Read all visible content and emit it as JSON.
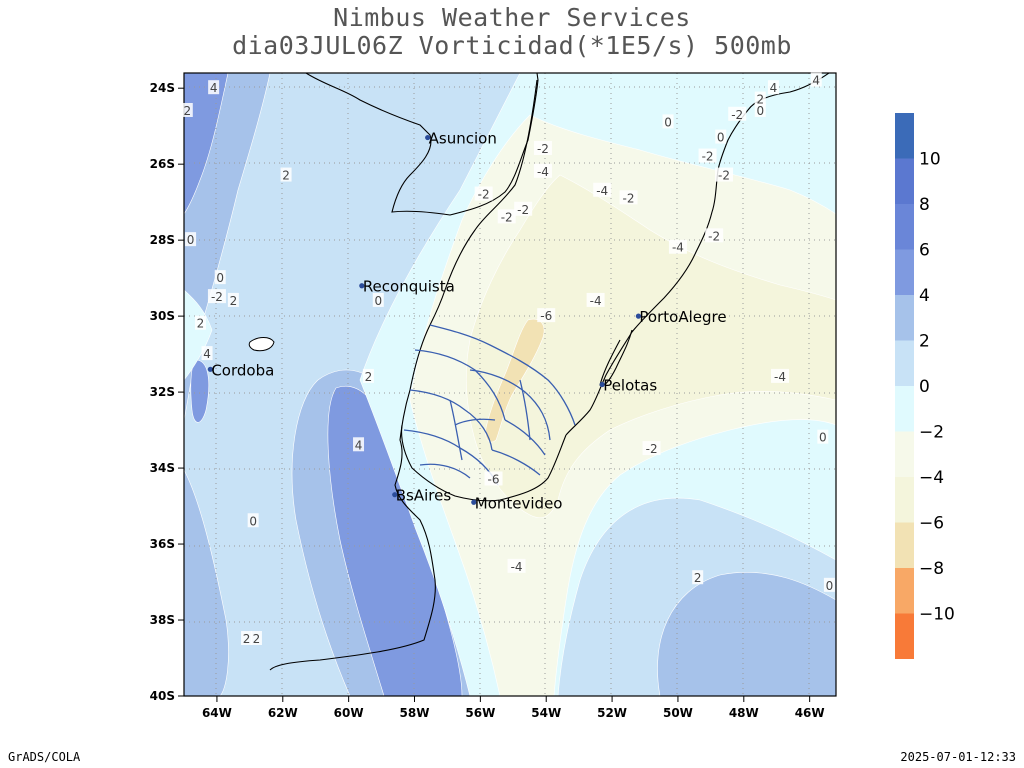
{
  "title": {
    "line1": "Nimbus Weather Services",
    "line2": "dia03JUL06Z Vorticidad(*1E5/s) 500mb"
  },
  "map": {
    "lon_range": [
      -65,
      -45.2
    ],
    "lat_range": [
      -40,
      -23.6
    ],
    "lon_ticks": [
      {
        "lon": -64,
        "label": "64W"
      },
      {
        "lon": -62,
        "label": "62W"
      },
      {
        "lon": -60,
        "label": "60W"
      },
      {
        "lon": -58,
        "label": "58W"
      },
      {
        "lon": -56,
        "label": "56W"
      },
      {
        "lon": -54,
        "label": "54W"
      },
      {
        "lon": -52,
        "label": "52W"
      },
      {
        "lon": -50,
        "label": "50W"
      },
      {
        "lon": -48,
        "label": "48W"
      },
      {
        "lon": -46,
        "label": "46W"
      }
    ],
    "lat_ticks": [
      {
        "lat": -24,
        "label": "24S"
      },
      {
        "lat": -26,
        "label": "26S"
      },
      {
        "lat": -28,
        "label": "28S"
      },
      {
        "lat": -30,
        "label": "30S"
      },
      {
        "lat": -32,
        "label": "32S"
      },
      {
        "lat": -34,
        "label": "34S"
      },
      {
        "lat": -36,
        "label": "36S"
      },
      {
        "lat": -38,
        "label": "38S"
      },
      {
        "lat": -40,
        "label": "40S"
      }
    ],
    "cities": [
      {
        "name": "Asuncion",
        "lon": -57.6,
        "lat": -25.3
      },
      {
        "name": "Reconquista",
        "lon": -59.6,
        "lat": -29.2
      },
      {
        "name": "Cordoba",
        "lon": -64.2,
        "lat": -31.4
      },
      {
        "name": "BsAires",
        "lon": -58.6,
        "lat": -34.7
      },
      {
        "name": "Montevideo",
        "lon": -56.2,
        "lat": -34.9
      },
      {
        "name": "PortoAlegre",
        "lon": -51.2,
        "lat": -30.0
      },
      {
        "name": "Pelotas",
        "lon": -52.3,
        "lat": -31.8
      }
    ],
    "contour_labels": [
      {
        "text": "4",
        "lon": -64.1,
        "lat": -24.0
      },
      {
        "text": "2",
        "lon": -64.9,
        "lat": -24.6
      },
      {
        "text": "-2",
        "lon": -54.1,
        "lat": -25.6
      },
      {
        "text": "0",
        "lon": -50.3,
        "lat": -24.9
      },
      {
        "text": "-2",
        "lon": -48.2,
        "lat": -24.7
      },
      {
        "text": "0",
        "lon": -47.5,
        "lat": -24.6
      },
      {
        "text": "2",
        "lon": -47.5,
        "lat": -24.3
      },
      {
        "text": "4",
        "lon": -47.1,
        "lat": -24.0
      },
      {
        "text": "4",
        "lon": -45.8,
        "lat": -23.8
      },
      {
        "text": "0",
        "lon": -48.7,
        "lat": -25.3
      },
      {
        "text": "-2",
        "lon": -49.1,
        "lat": -25.8
      },
      {
        "text": "-2",
        "lon": -48.6,
        "lat": -26.3
      },
      {
        "text": "2",
        "lon": -61.9,
        "lat": -26.3
      },
      {
        "text": "-4",
        "lon": -54.1,
        "lat": -26.2
      },
      {
        "text": "-2",
        "lon": -55.9,
        "lat": -26.8
      },
      {
        "text": "-4",
        "lon": -52.3,
        "lat": -26.7
      },
      {
        "text": "-2",
        "lon": -51.5,
        "lat": -26.9
      },
      {
        "text": "-2",
        "lon": -54.7,
        "lat": -27.2
      },
      {
        "text": "-2",
        "lon": -55.2,
        "lat": -27.4
      },
      {
        "text": "-2",
        "lon": -48.9,
        "lat": -27.9
      },
      {
        "text": "-4",
        "lon": -50.0,
        "lat": -28.2
      },
      {
        "text": "0",
        "lon": -63.9,
        "lat": -29.0
      },
      {
        "text": "-2",
        "lon": -64.0,
        "lat": -29.5
      },
      {
        "text": "2",
        "lon": -63.5,
        "lat": -29.6
      },
      {
        "text": "0",
        "lon": -59.1,
        "lat": -29.6
      },
      {
        "text": "-4",
        "lon": -52.5,
        "lat": -29.6
      },
      {
        "text": "-6",
        "lon": -54.0,
        "lat": -30.0
      },
      {
        "text": "4",
        "lon": -64.3,
        "lat": -31.0
      },
      {
        "text": "2",
        "lon": -59.4,
        "lat": -31.6
      },
      {
        "text": "-4",
        "lon": -46.9,
        "lat": -31.6
      },
      {
        "text": "4",
        "lon": -59.7,
        "lat": -33.4
      },
      {
        "text": "-2",
        "lon": -50.8,
        "lat": -33.5
      },
      {
        "text": "0",
        "lon": -45.6,
        "lat": -33.2
      },
      {
        "text": "-6",
        "lon": -55.6,
        "lat": -34.3
      },
      {
        "text": "0",
        "lon": -62.9,
        "lat": -35.4
      },
      {
        "text": "-4",
        "lon": -54.9,
        "lat": -36.6
      },
      {
        "text": "2",
        "lon": -49.4,
        "lat": -36.9
      },
      {
        "text": "0",
        "lon": -45.4,
        "lat": -37.1
      },
      {
        "text": "2",
        "lon": -62.8,
        "lat": -38.5
      },
      {
        "text": "2",
        "lon": -63.1,
        "lat": -38.5
      },
      {
        "text": "2",
        "lon": -64.5,
        "lat": -30.2
      },
      {
        "text": "0",
        "lon": -64.8,
        "lat": -28.0
      }
    ]
  },
  "legend": {
    "colors": [
      "#3b6bb8",
      "#5b78d0",
      "#6a86d8",
      "#7f9ae0",
      "#a6c2ea",
      "#c8e2f6",
      "#e0fafe",
      "#f6f9ea",
      "#f4f5dc",
      "#f2e2b4",
      "#f8a866",
      "#f87a38"
    ],
    "labels": [
      "10",
      "8",
      "6",
      "4",
      "2",
      "0",
      "−2",
      "−4",
      "−6",
      "−8",
      "−10"
    ]
  },
  "footer": {
    "left": "GrADS/COLA",
    "right": "2025-07-01-12:33"
  }
}
